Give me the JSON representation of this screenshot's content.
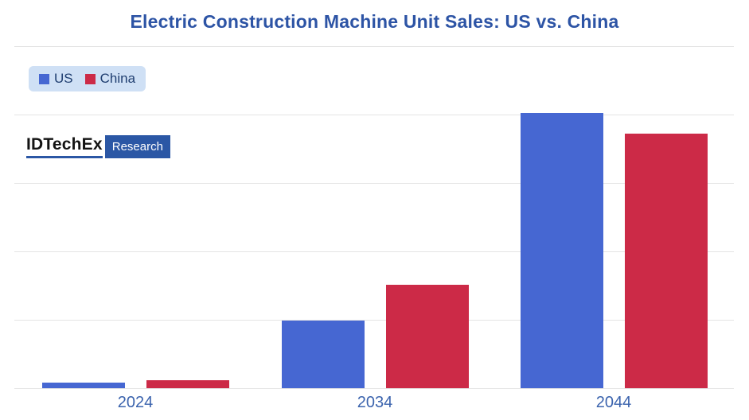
{
  "legend": {
    "background": "#cfe0f5",
    "text_color": "#1f3e70"
  },
  "watermark": {
    "brand": "IDTechEx",
    "suffix": "Research",
    "accent": "#2b57a5",
    "brand_color": "#131313"
  },
  "colors": {
    "title": "#2d54a5",
    "axis_label": "#3c64ae",
    "gridline": "#e4e4e4",
    "background": "#ffffff"
  },
  "chart_data": {
    "type": "bar",
    "title": "Electric Construction Machine Unit Sales: US vs. China",
    "categories": [
      "2024",
      "2034",
      "2044"
    ],
    "series": [
      {
        "name": "US",
        "color": "#4667d2",
        "values": [
          0.08,
          0.99,
          4.02
        ]
      },
      {
        "name": "China",
        "color": "#cc2a47",
        "values": [
          0.12,
          1.51,
          3.72
        ]
      }
    ],
    "xlabel": "",
    "ylabel": "",
    "y_axis": {
      "tick_labels_visible": false,
      "ylim": [
        0,
        5
      ],
      "gridline_count": 6,
      "unit_note": "no numeric y-axis labels shown; values estimated in gridline-spacing units"
    },
    "grid": true,
    "legend_position": "top-left"
  }
}
